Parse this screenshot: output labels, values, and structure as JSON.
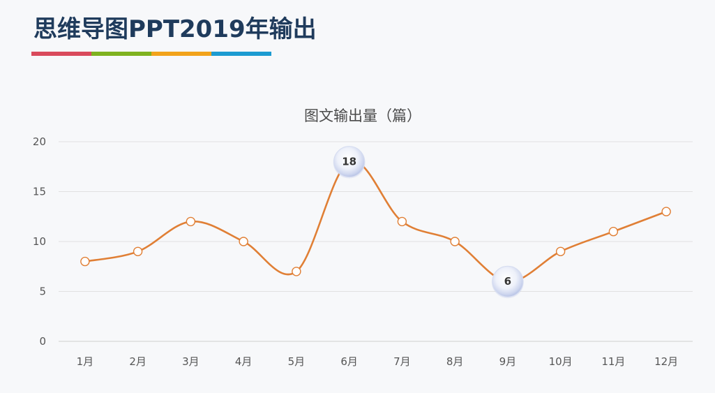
{
  "page": {
    "title": "思维导图PPT2019年输出",
    "bar_colors": [
      "#d94a5c",
      "#7fb21f",
      "#f2a31b",
      "#1c9bd1"
    ]
  },
  "chart_data": {
    "type": "line",
    "title": "图文输出量（篇）",
    "categories": [
      "1月",
      "2月",
      "3月",
      "4月",
      "5月",
      "6月",
      "7月",
      "8月",
      "9月",
      "10月",
      "11月",
      "12月"
    ],
    "values": [
      8,
      9,
      12,
      10,
      7,
      18,
      12,
      10,
      6,
      9,
      11,
      13
    ],
    "highlight_labels": [
      {
        "category": "6月",
        "value": 18,
        "label": "18"
      },
      {
        "category": "9月",
        "value": 6,
        "label": "6"
      }
    ],
    "ylim": [
      0,
      20
    ],
    "yticks": [
      0,
      5,
      10,
      15,
      20
    ],
    "grid": true,
    "line_color": "#e07f35"
  }
}
